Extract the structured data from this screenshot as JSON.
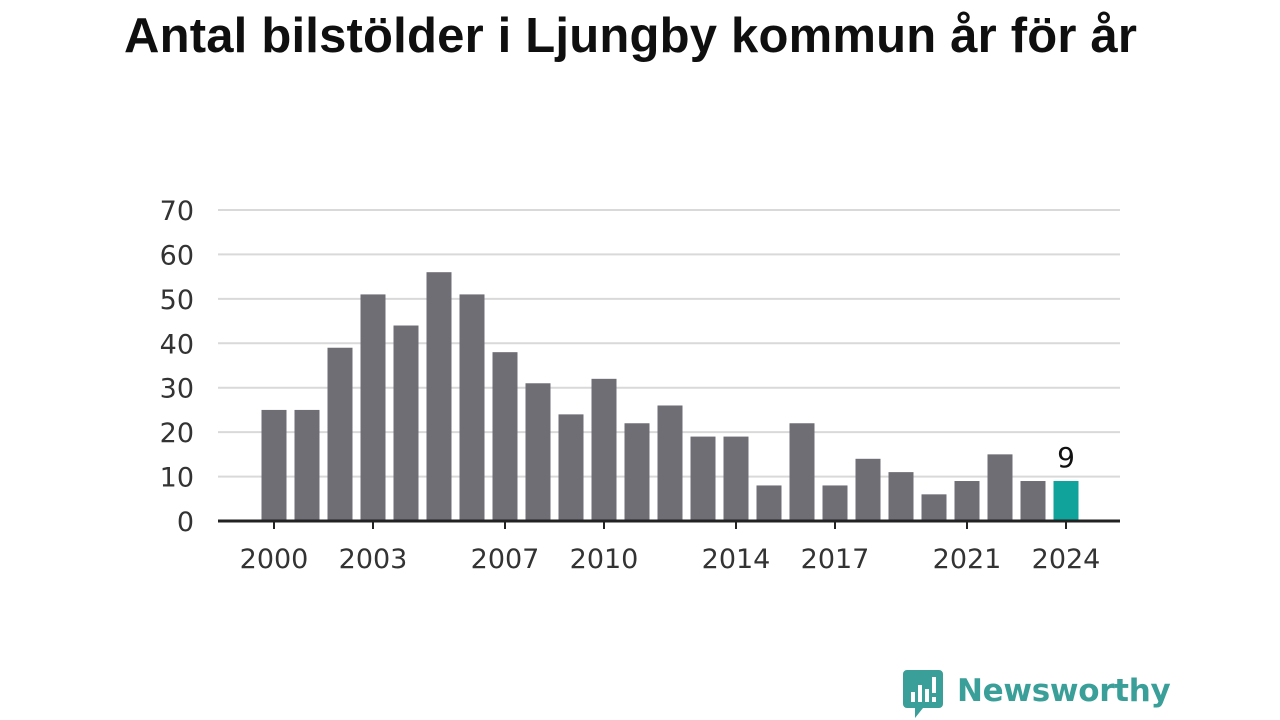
{
  "chart_data": {
    "type": "bar",
    "title": "Antal bilstölder i Ljungby kommun år för år",
    "xlabel": "",
    "ylabel": "",
    "categories": [
      "2000",
      "2001",
      "2002",
      "2003",
      "2004",
      "2005",
      "2006",
      "2007",
      "2008",
      "2009",
      "2010",
      "2011",
      "2012",
      "2013",
      "2014",
      "2015",
      "2016",
      "2017",
      "2018",
      "2019",
      "2020",
      "2021",
      "2022",
      "2023",
      "2024"
    ],
    "values": [
      25,
      25,
      39,
      51,
      44,
      56,
      51,
      38,
      31,
      24,
      32,
      22,
      26,
      19,
      19,
      8,
      22,
      8,
      14,
      11,
      6,
      9,
      15,
      9,
      9
    ],
    "x_tick_labels": [
      "2000",
      "2003",
      "2007",
      "2010",
      "2014",
      "2017",
      "2021",
      "2024"
    ],
    "y_ticks": [
      0,
      10,
      20,
      30,
      40,
      50,
      60,
      70
    ],
    "ylim": [
      0,
      70
    ],
    "grid": true,
    "highlight_category": "2024",
    "highlight_label": "9",
    "colors": {
      "bar": "#6f6e75",
      "highlight": "#10a39b",
      "grid": "#d9d9d9",
      "axis": "#222222",
      "text": "#333333"
    }
  },
  "brand": {
    "name": "Newsworthy",
    "icon": "speech-bubble-bar-chart-icon",
    "color": "#3a9f98"
  }
}
